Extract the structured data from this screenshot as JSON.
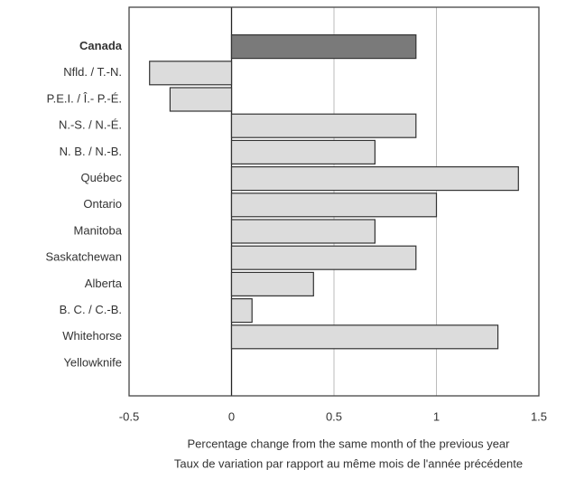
{
  "chart_data": {
    "type": "barh",
    "categories": [
      "Canada",
      "Nfld. / T.-N.",
      "P.E.I. / Î.- P.-É.",
      "N.-S. / N.-É.",
      "N. B. / N.-B.",
      "Québec",
      "Ontario",
      "Manitoba",
      "Saskatchewan",
      "Alberta",
      "B. C. / C.-B.",
      "Whitehorse",
      "Yellowknife"
    ],
    "values": [
      0.9,
      -0.4,
      -0.3,
      0.9,
      0.7,
      1.4,
      1.0,
      0.7,
      0.9,
      0.4,
      0.1,
      1.3,
      null
    ],
    "colors": [
      "#7a7a7a",
      "#dcdcdc",
      "#dcdcdc",
      "#dcdcdc",
      "#dcdcdc",
      "#dcdcdc",
      "#dcdcdc",
      "#dcdcdc",
      "#dcdcdc",
      "#dcdcdc",
      "#dcdcdc",
      "#dcdcdc",
      "#dcdcdc"
    ],
    "bold_categories": [
      "Canada"
    ],
    "xlim": [
      -0.5,
      1.5
    ],
    "xticks": [
      -0.5,
      0,
      0.5,
      1,
      1.5
    ],
    "grid": true,
    "xlabel": [
      "Percentage change from the same month of the previous year",
      "Taux de variation par rapport au même mois de l'année précédente"
    ]
  }
}
